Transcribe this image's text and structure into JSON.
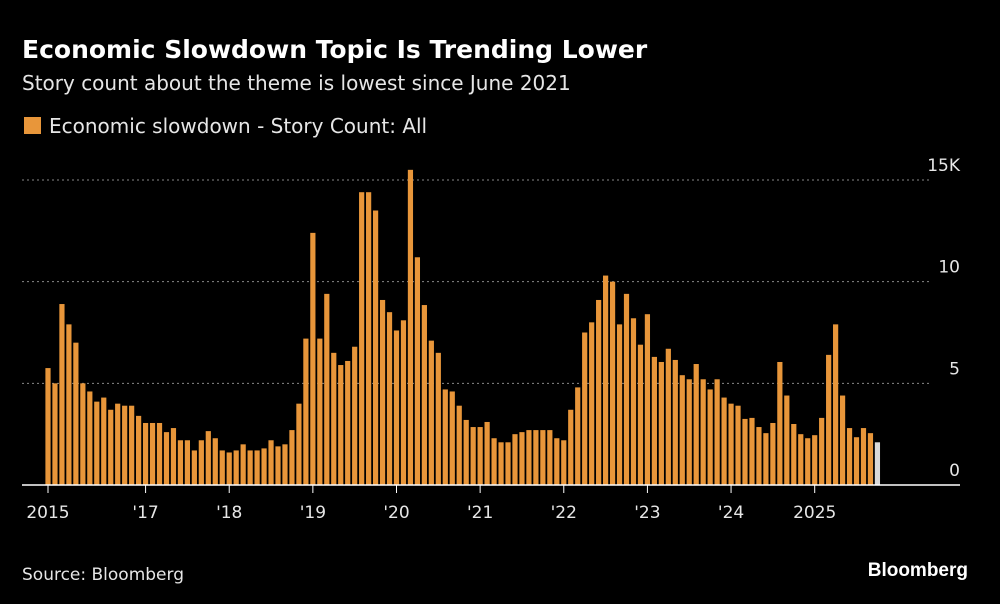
{
  "chart_data": {
    "type": "bar",
    "title": "Economic Slowdown Topic Is Trending Lower",
    "subtitle": "Story count about the theme is lowest since June 2021",
    "legend": "Economic slowdown - Story Count: All",
    "source": "Source: Bloomberg",
    "brand": "Bloomberg",
    "color": "#e8963a",
    "last_bar_color": "#d9d9d9",
    "grid": true,
    "categories": [
      "2015",
      null,
      null,
      null,
      null,
      null,
      null,
      null,
      null,
      null,
      null,
      null,
      null,
      null,
      "'17",
      null,
      null,
      null,
      null,
      null,
      null,
      null,
      null,
      null,
      null,
      null,
      "'18",
      null,
      null,
      null,
      null,
      null,
      null,
      null,
      null,
      null,
      null,
      null,
      "'19",
      null,
      null,
      null,
      null,
      null,
      null,
      null,
      null,
      null,
      null,
      null,
      "'20",
      null,
      null,
      null,
      null,
      null,
      null,
      null,
      null,
      null,
      null,
      null,
      "'21",
      null,
      null,
      null,
      null,
      null,
      null,
      null,
      null,
      null,
      null,
      null,
      "'22",
      null,
      null,
      null,
      null,
      null,
      null,
      null,
      null,
      null,
      null,
      null,
      "'23",
      null,
      null,
      null,
      null,
      null,
      null,
      null,
      null,
      null,
      null,
      null,
      "'24",
      null,
      null,
      null,
      null,
      null,
      null,
      null,
      null,
      null,
      null,
      null,
      "2025",
      null,
      null,
      null,
      null,
      null,
      null,
      null,
      null,
      null
    ],
    "values": [
      5.75,
      5.0,
      8.9,
      7.9,
      7.0,
      5.0,
      4.6,
      4.1,
      4.3,
      3.7,
      4.0,
      3.9,
      3.9,
      3.4,
      3.05,
      3.05,
      3.05,
      2.6,
      2.8,
      2.2,
      2.2,
      1.7,
      2.2,
      2.65,
      2.3,
      1.7,
      1.6,
      1.7,
      2.0,
      1.7,
      1.7,
      1.8,
      2.2,
      1.9,
      2.0,
      2.7,
      4.0,
      7.2,
      12.4,
      7.2,
      9.4,
      6.5,
      5.9,
      6.1,
      6.8,
      14.4,
      14.4,
      13.5,
      9.1,
      8.5,
      7.6,
      8.1,
      15.5,
      11.2,
      8.85,
      7.1,
      6.5,
      4.7,
      4.6,
      3.9,
      3.2,
      2.85,
      2.85,
      3.1,
      2.3,
      2.1,
      2.1,
      2.5,
      2.6,
      2.7,
      2.7,
      2.7,
      2.7,
      2.3,
      2.2,
      3.7,
      4.8,
      7.5,
      8.0,
      9.1,
      10.3,
      10.0,
      7.9,
      9.4,
      8.2,
      6.9,
      8.4,
      6.3,
      6.05,
      6.7,
      6.15,
      5.4,
      5.2,
      5.95,
      5.2,
      4.7,
      5.2,
      4.3,
      4.0,
      3.9,
      3.25,
      3.3,
      2.85,
      2.55,
      3.05,
      6.05,
      4.4,
      3.0,
      2.5,
      2.3,
      2.45,
      3.3,
      6.4,
      7.9,
      4.4,
      2.8,
      2.35,
      2.8,
      2.55,
      2.1
    ],
    "ylim": [
      0,
      15
    ],
    "yticks": [
      0,
      5,
      10,
      {
        "value": 15,
        "label": "15K"
      }
    ]
  }
}
